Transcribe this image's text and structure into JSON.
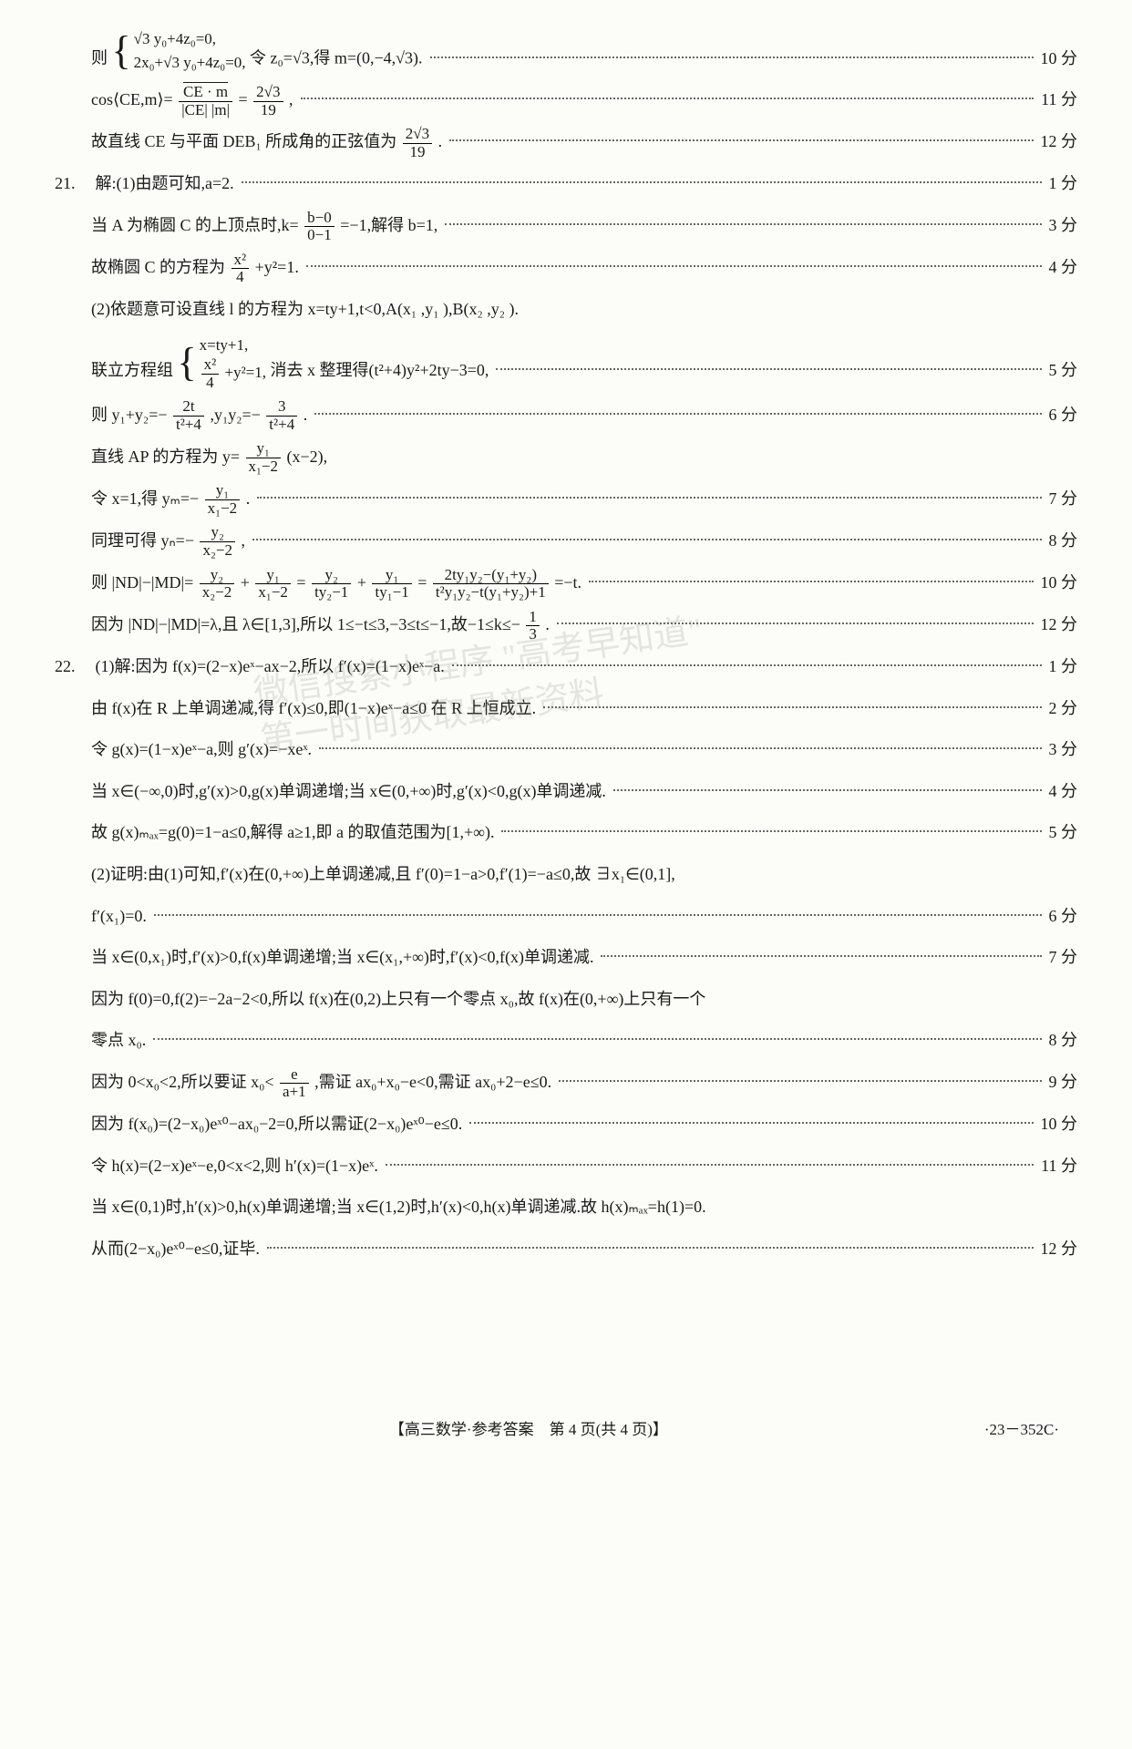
{
  "problem20": {
    "l1a": "则",
    "l1b_eq1": "√3 y₀+4z₀=0,",
    "l1b_eq2": "2x₀+√3 y₀+4z₀=0,",
    "l1c": "令 z₀=√3,得 m=(0,−4,√3). ",
    "l1_pts": "10 分",
    "l2": "cos⟨CE,m⟩=",
    "l2_frac_num": "CE · m",
    "l2_frac_den": "|CE| |m|",
    "l2_eq": "=",
    "l2_frac2_num": "2√3",
    "l2_frac2_den": "19",
    "l2_end": ",",
    "l2_pts": "11 分",
    "l3a": "故直线 CE 与平面 DEB₁ 所成角的正弦值为",
    "l3_frac_num": "2√3",
    "l3_frac_den": "19",
    "l3b": ".",
    "l3_pts": "12 分"
  },
  "problem21": {
    "num": "21.",
    "l1": "解:(1)由题可知,a=2.",
    "l1_pts": "1 分",
    "l2a": "当 A 为椭圆 C 的上顶点时,k=",
    "l2_frac_num": "b−0",
    "l2_frac_den": "0−1",
    "l2b": "=−1,解得 b=1,",
    "l2_pts": "3 分",
    "l3a": "故椭圆 C 的方程为",
    "l3_frac_num": "x²",
    "l3_frac_den": "4",
    "l3b": "+y²=1.",
    "l3_pts": "4 分",
    "l4": "(2)依题意可设直线 l 的方程为 x=ty+1,t<0,A(x₁ ,y₁ ),B(x₂ ,y₂ ).",
    "l5a": "联立方程组",
    "l5_eq1": "x=ty+1,",
    "l5_eq2_a": "x²",
    "l5_eq2_b": "4",
    "l5_eq2_c": "+y²=1,",
    "l5b": "消去 x 整理得(t²+4)y²+2ty−3=0,",
    "l5_pts": "5 分",
    "l6a": "则 y₁+y₂=−",
    "l6_f1_num": "2t",
    "l6_f1_den": "t²+4",
    "l6b": ",y₁y₂=−",
    "l6_f2_num": "3",
    "l6_f2_den": "t²+4",
    "l6c": ".",
    "l6_pts": "6 分",
    "l7a": "直线 AP 的方程为 y=",
    "l7_frac_num": "y₁",
    "l7_frac_den": "x₁−2",
    "l7b": "(x−2),",
    "l8a": "令 x=1,得 yₘ=−",
    "l8_frac_num": "y₁",
    "l8_frac_den": "x₁−2",
    "l8b": ".",
    "l8_pts": "7 分",
    "l9a": "同理可得 yₙ=−",
    "l9_frac_num": "y₂",
    "l9_frac_den": "x₂−2",
    "l9b": ",",
    "l9_pts": "8 分",
    "l10a": "则 |ND|−|MD|=",
    "l10_f1_num": "y₂",
    "l10_f1_den": "x₂−2",
    "l10_mid1": "+",
    "l10_f2_num": "y₁",
    "l10_f2_den": "x₁−2",
    "l10_mid2": "=",
    "l10_f3_num": "y₂",
    "l10_f3_den": "ty₂−1",
    "l10_mid3": "+",
    "l10_f4_num": "y₁",
    "l10_f4_den": "ty₁−1",
    "l10_mid4": "=",
    "l10_f5_num": "2ty₁y₂−(y₁+y₂)",
    "l10_f5_den": "t²y₁y₂−t(y₁+y₂)+1",
    "l10b": "=−t.",
    "l10_pts": "10 分",
    "l11a": "因为 |ND|−|MD|=λ,且 λ∈[1,3],所以 1≤−t≤3,−3≤t≤−1,故−1≤k≤−",
    "l11_frac_num": "1",
    "l11_frac_den": "3",
    "l11b": ".",
    "l11_pts": "12 分"
  },
  "problem22": {
    "num": "22.",
    "l1": "(1)解:因为 f(x)=(2−x)eˣ−ax−2,所以 f′(x)=(1−x)eˣ−a.",
    "l1_pts": "1 分",
    "l2": "由 f(x)在 R 上单调递减,得 f′(x)≤0,即(1−x)eˣ−a≤0 在 R 上恒成立.",
    "l2_pts": "2 分",
    "l3": "令 g(x)=(1−x)eˣ−a,则 g′(x)=−xeˣ.",
    "l3_pts": "3 分",
    "l4": "当 x∈(−∞,0)时,g′(x)>0,g(x)单调递增;当 x∈(0,+∞)时,g′(x)<0,g(x)单调递减.",
    "l4_pts": "4 分",
    "l5": "故 g(x)ₘₐₓ=g(0)=1−a≤0,解得 a≥1,即 a 的取值范围为[1,+∞).",
    "l5_pts": "5 分",
    "l6a": "(2)证明:由(1)可知,f′(x)在(0,+∞)上单调递减,且 f′(0)=1−a>0,f′(1)=−a≤0,故 ∃x₁∈(0,1],",
    "l6b": "f′(x₁)=0.",
    "l6_pts": "6 分",
    "l7": "当 x∈(0,x₁)时,f′(x)>0,f(x)单调递增;当 x∈(x₁,+∞)时,f′(x)<0,f(x)单调递减.",
    "l7_pts": "7 分",
    "l8a": "因为 f(0)=0,f(2)=−2a−2<0,所以 f(x)在(0,2)上只有一个零点 x₀,故 f(x)在(0,+∞)上只有一个",
    "l8b": "零点 x₀.",
    "l8_pts": "8 分",
    "l9a": "因为 0<x₀<2,所以要证 x₀<",
    "l9_frac_num": "e",
    "l9_frac_den": "a+1",
    "l9b": ",需证 ax₀+x₀−e<0,需证 ax₀+2−e≤0.",
    "l9_pts": "9 分",
    "l10": "因为 f(x₀)=(2−x₀)eˣ⁰−ax₀−2=0,所以需证(2−x₀)eˣ⁰−e≤0.",
    "l10_pts": "10 分",
    "l11": "令 h(x)=(2−x)eˣ−e,0<x<2,则 h′(x)=(1−x)eˣ.",
    "l11_pts": "11 分",
    "l12a": "当 x∈(0,1)时,h′(x)>0,h(x)单调递增;当 x∈(1,2)时,h′(x)<0,h(x)单调递减.故 h(x)ₘₐₓ=h(1)=0.",
    "l12b": "从而(2−x₀)eˣ⁰−e≤0,证毕.",
    "l12_pts": "12 分"
  },
  "footer": {
    "center": "【高三数学·参考答案　第 4 页(共 4 页)】",
    "right": "·23－352C·"
  },
  "watermark": {
    "l1": "微信搜索小程序 \"高考早知道\"",
    "l2": "第一时间获取最新资料"
  }
}
